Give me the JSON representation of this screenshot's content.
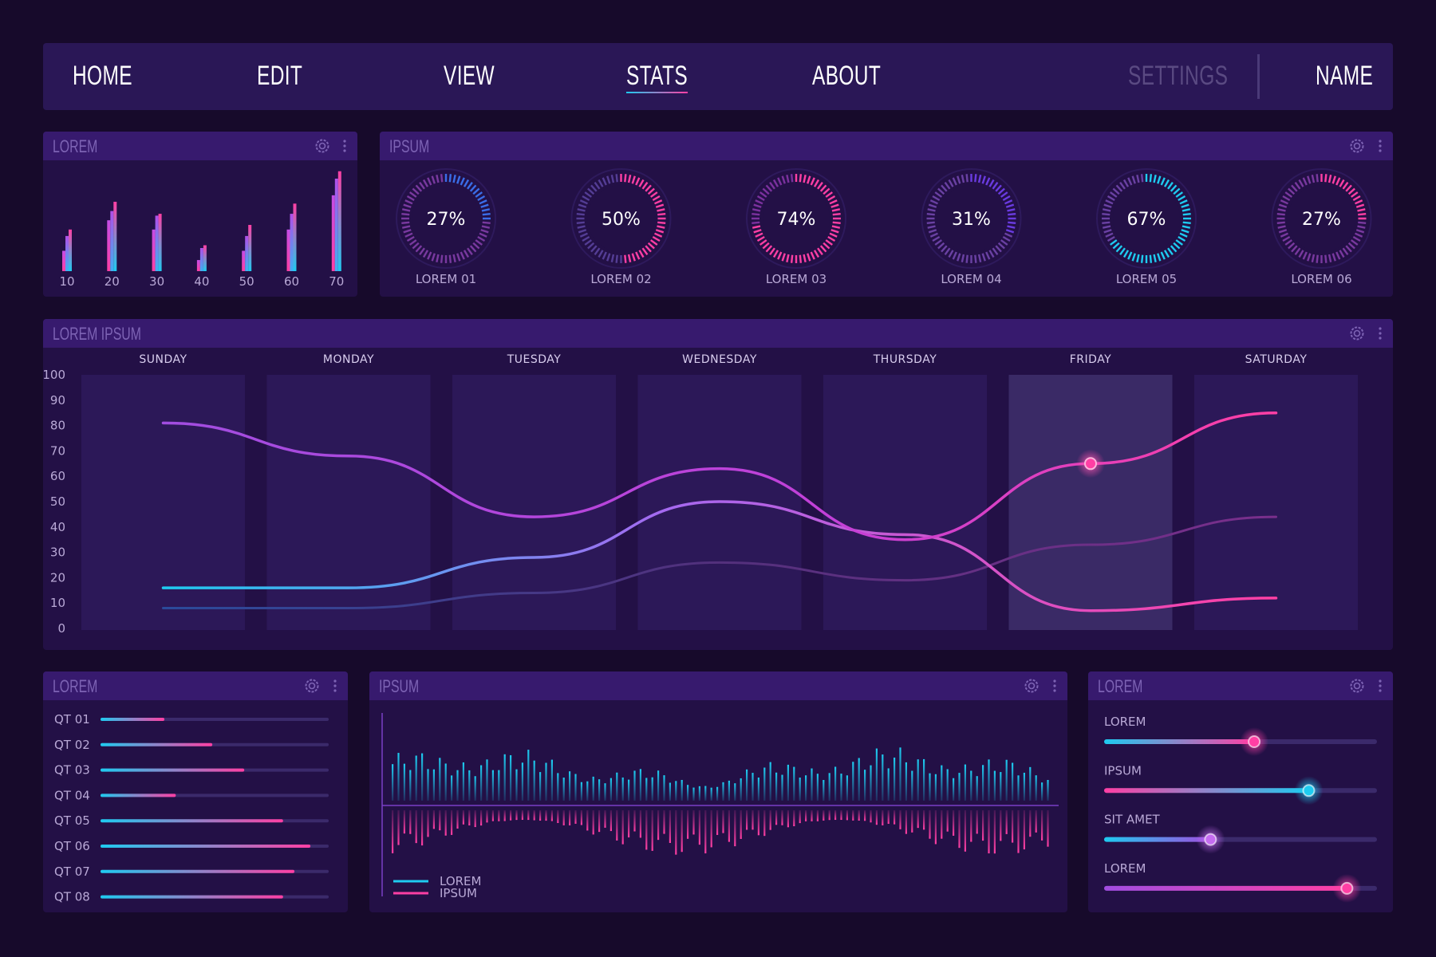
{
  "nav": {
    "items": [
      {
        "label": "HOME",
        "active": false
      },
      {
        "label": "EDIT",
        "active": false
      },
      {
        "label": "VIEW",
        "active": false
      },
      {
        "label": "STATS",
        "active": true
      },
      {
        "label": "ABOUT",
        "active": false
      }
    ],
    "settings_label": "SETTINGS",
    "name_label": "NAME"
  },
  "colors": {
    "background": "#170a2b",
    "panel": "#231046",
    "panel_header": "#371a6e",
    "cyan": "#1ecbf0",
    "pink": "#ff3fa4",
    "purple": "#a14de0"
  },
  "bars_panel": {
    "title": "LOREM",
    "icons": [
      "gear-icon",
      "more-vertical-icon"
    ],
    "chart_data": {
      "type": "bar",
      "categories": [
        "10",
        "20",
        "30",
        "40",
        "50",
        "60",
        "70"
      ],
      "series": [
        {
          "values": [
            22,
            55,
            45,
            12,
            22,
            45,
            82
          ]
        },
        {
          "values": [
            38,
            65,
            60,
            25,
            38,
            62,
            100
          ]
        },
        {
          "values": [
            45,
            75,
            62,
            28,
            50,
            73,
            108
          ]
        }
      ]
    }
  },
  "gauges_panel": {
    "title": "IPSUM",
    "icons": [
      "gear-icon",
      "more-vertical-icon"
    ],
    "gauges": [
      {
        "label": "LOREM 01",
        "value": 27,
        "text": "27%"
      },
      {
        "label": "LOREM 02",
        "value": 50,
        "text": "50%"
      },
      {
        "label": "LOREM 03",
        "value": 74,
        "text": "74%"
      },
      {
        "label": "LOREM 04",
        "value": 31,
        "text": "31%"
      },
      {
        "label": "LOREM 05",
        "value": 67,
        "text": "67%"
      },
      {
        "label": "LOREM 06",
        "value": 27,
        "text": "27%"
      }
    ]
  },
  "line_panel": {
    "title": "LOREM IPSUM",
    "icons": [
      "gear-icon",
      "more-vertical-icon"
    ],
    "chart_data": {
      "type": "line",
      "categories": [
        "SUNDAY",
        "MONDAY",
        "TUESDAY",
        "WEDNESDAY",
        "THURSDAY",
        "FRIDAY",
        "SATURDAY"
      ],
      "yticks": [
        "100",
        "90",
        "80",
        "70",
        "60",
        "50",
        "40",
        "30",
        "20",
        "10",
        "0"
      ],
      "ylim": [
        0,
        100
      ],
      "highlighted_category": "FRIDAY",
      "series": [
        {
          "values": [
            81,
            68,
            44,
            63,
            35,
            65,
            85
          ]
        },
        {
          "values": [
            16,
            16,
            28,
            50,
            37,
            7,
            12
          ]
        },
        {
          "values": [
            8,
            8,
            14,
            26,
            19,
            33,
            44
          ]
        }
      ],
      "marker": {
        "series": 0,
        "category": "FRIDAY",
        "value": 65
      }
    }
  },
  "progress_panel": {
    "title": "LOREM",
    "icons": [
      "gear-icon",
      "more-vertical-icon"
    ],
    "rows": [
      {
        "label": "QT 01",
        "value": 0.28
      },
      {
        "label": "QT 02",
        "value": 0.49
      },
      {
        "label": "QT 03",
        "value": 0.63
      },
      {
        "label": "QT 04",
        "value": 0.33
      },
      {
        "label": "QT 05",
        "value": 0.8
      },
      {
        "label": "QT 06",
        "value": 0.92
      },
      {
        "label": "QT 07",
        "value": 0.85
      },
      {
        "label": "QT 08",
        "value": 0.8
      }
    ]
  },
  "wave_panel": {
    "title": "IPSUM",
    "icons": [
      "gear-icon",
      "more-vertical-icon"
    ],
    "legend": [
      {
        "label": "LOREM",
        "color": "#1ecbf0"
      },
      {
        "label": "IPSUM",
        "color": "#ff3fa4"
      }
    ]
  },
  "sliders_panel": {
    "title": "LOREM",
    "icons": [
      "gear-icon",
      "more-vertical-icon"
    ],
    "sliders": [
      {
        "label": "LOREM",
        "value": 0.55,
        "from": "#1ecbf0",
        "to": "#ff3fa4",
        "knob": "#ff3fa4"
      },
      {
        "label": "IPSUM",
        "value": 0.75,
        "from": "#ff3fa4",
        "to": "#1ecbf0",
        "knob": "#1ecbf0"
      },
      {
        "label": "SIT AMET",
        "value": 0.39,
        "from": "#1ecbf0",
        "to": "#a14de0",
        "knob": "#c56cf0"
      },
      {
        "label": "LOREM",
        "value": 0.89,
        "from": "#a14de0",
        "to": "#ff3fa4",
        "knob": "#ff3fa4"
      }
    ]
  }
}
